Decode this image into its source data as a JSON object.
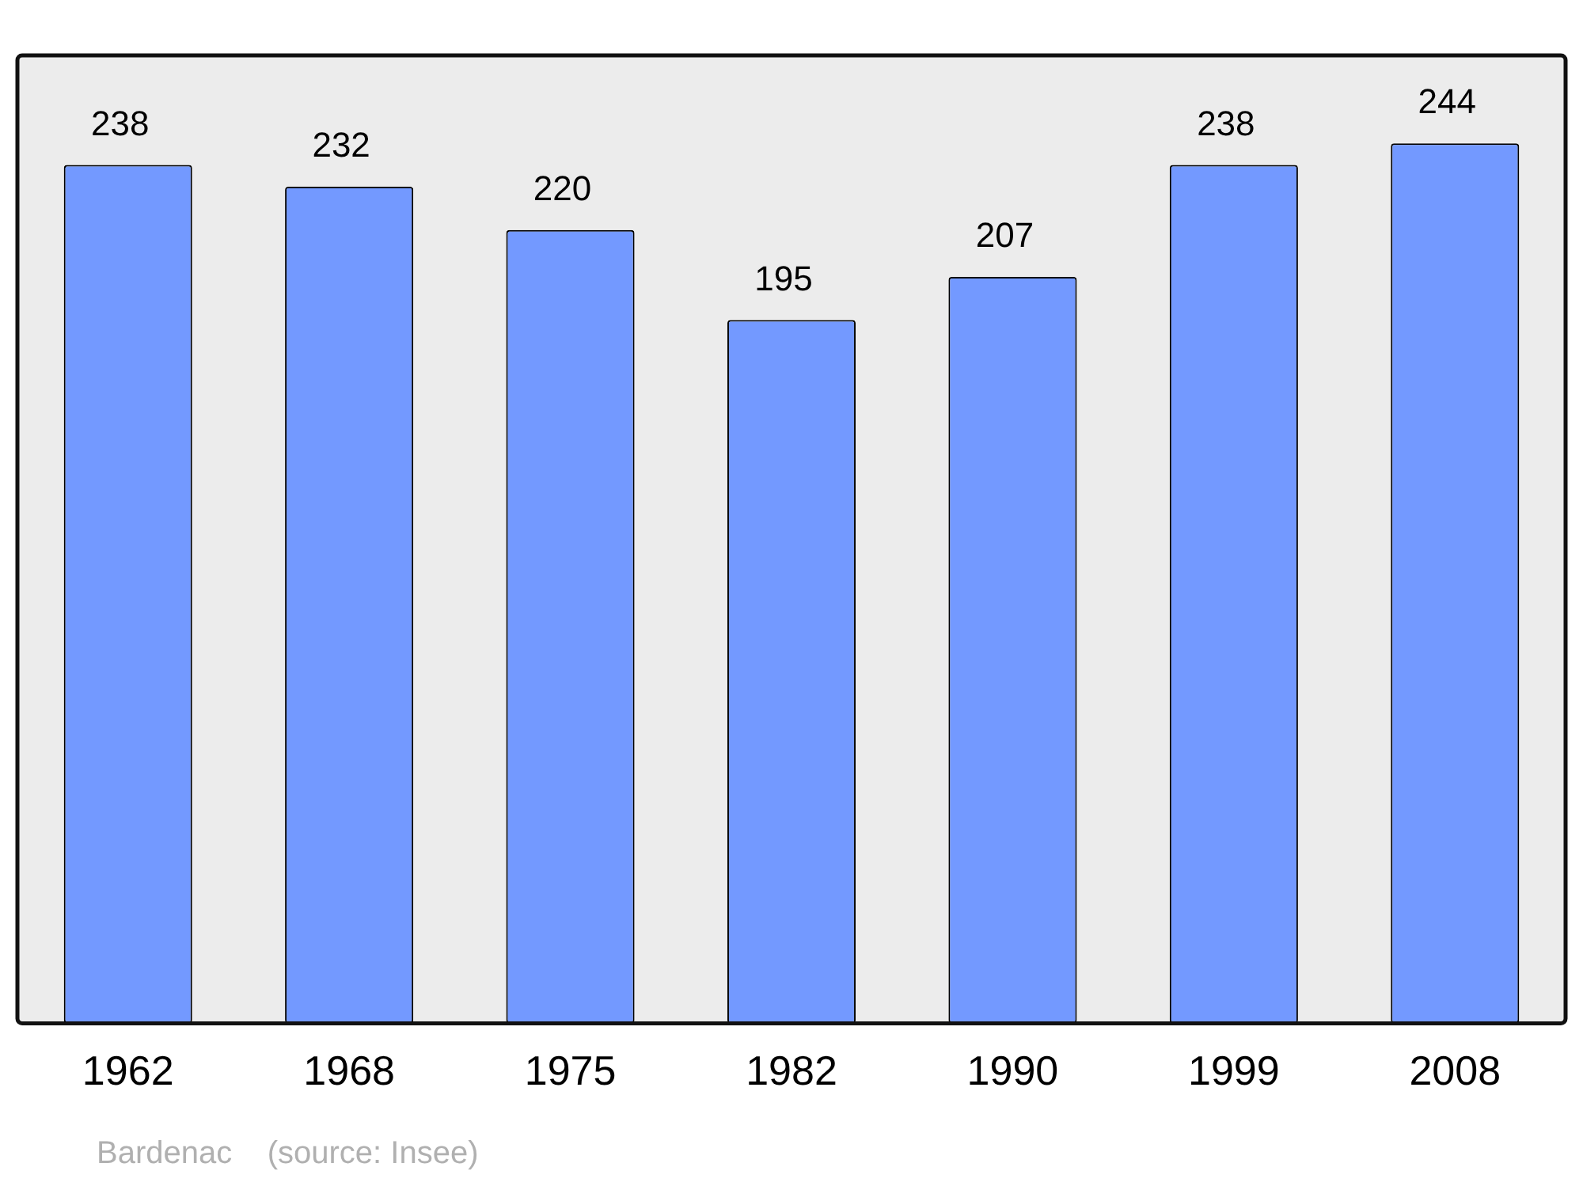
{
  "chart_data": {
    "type": "bar",
    "categories": [
      "1962",
      "1968",
      "1975",
      "1982",
      "1990",
      "1999",
      "2008"
    ],
    "values": [
      238,
      232,
      220,
      195,
      207,
      238,
      244
    ],
    "color": "#7399ff",
    "data_labels": true,
    "annotations": [
      "Bardenac    (source: Insee)"
    ]
  }
}
